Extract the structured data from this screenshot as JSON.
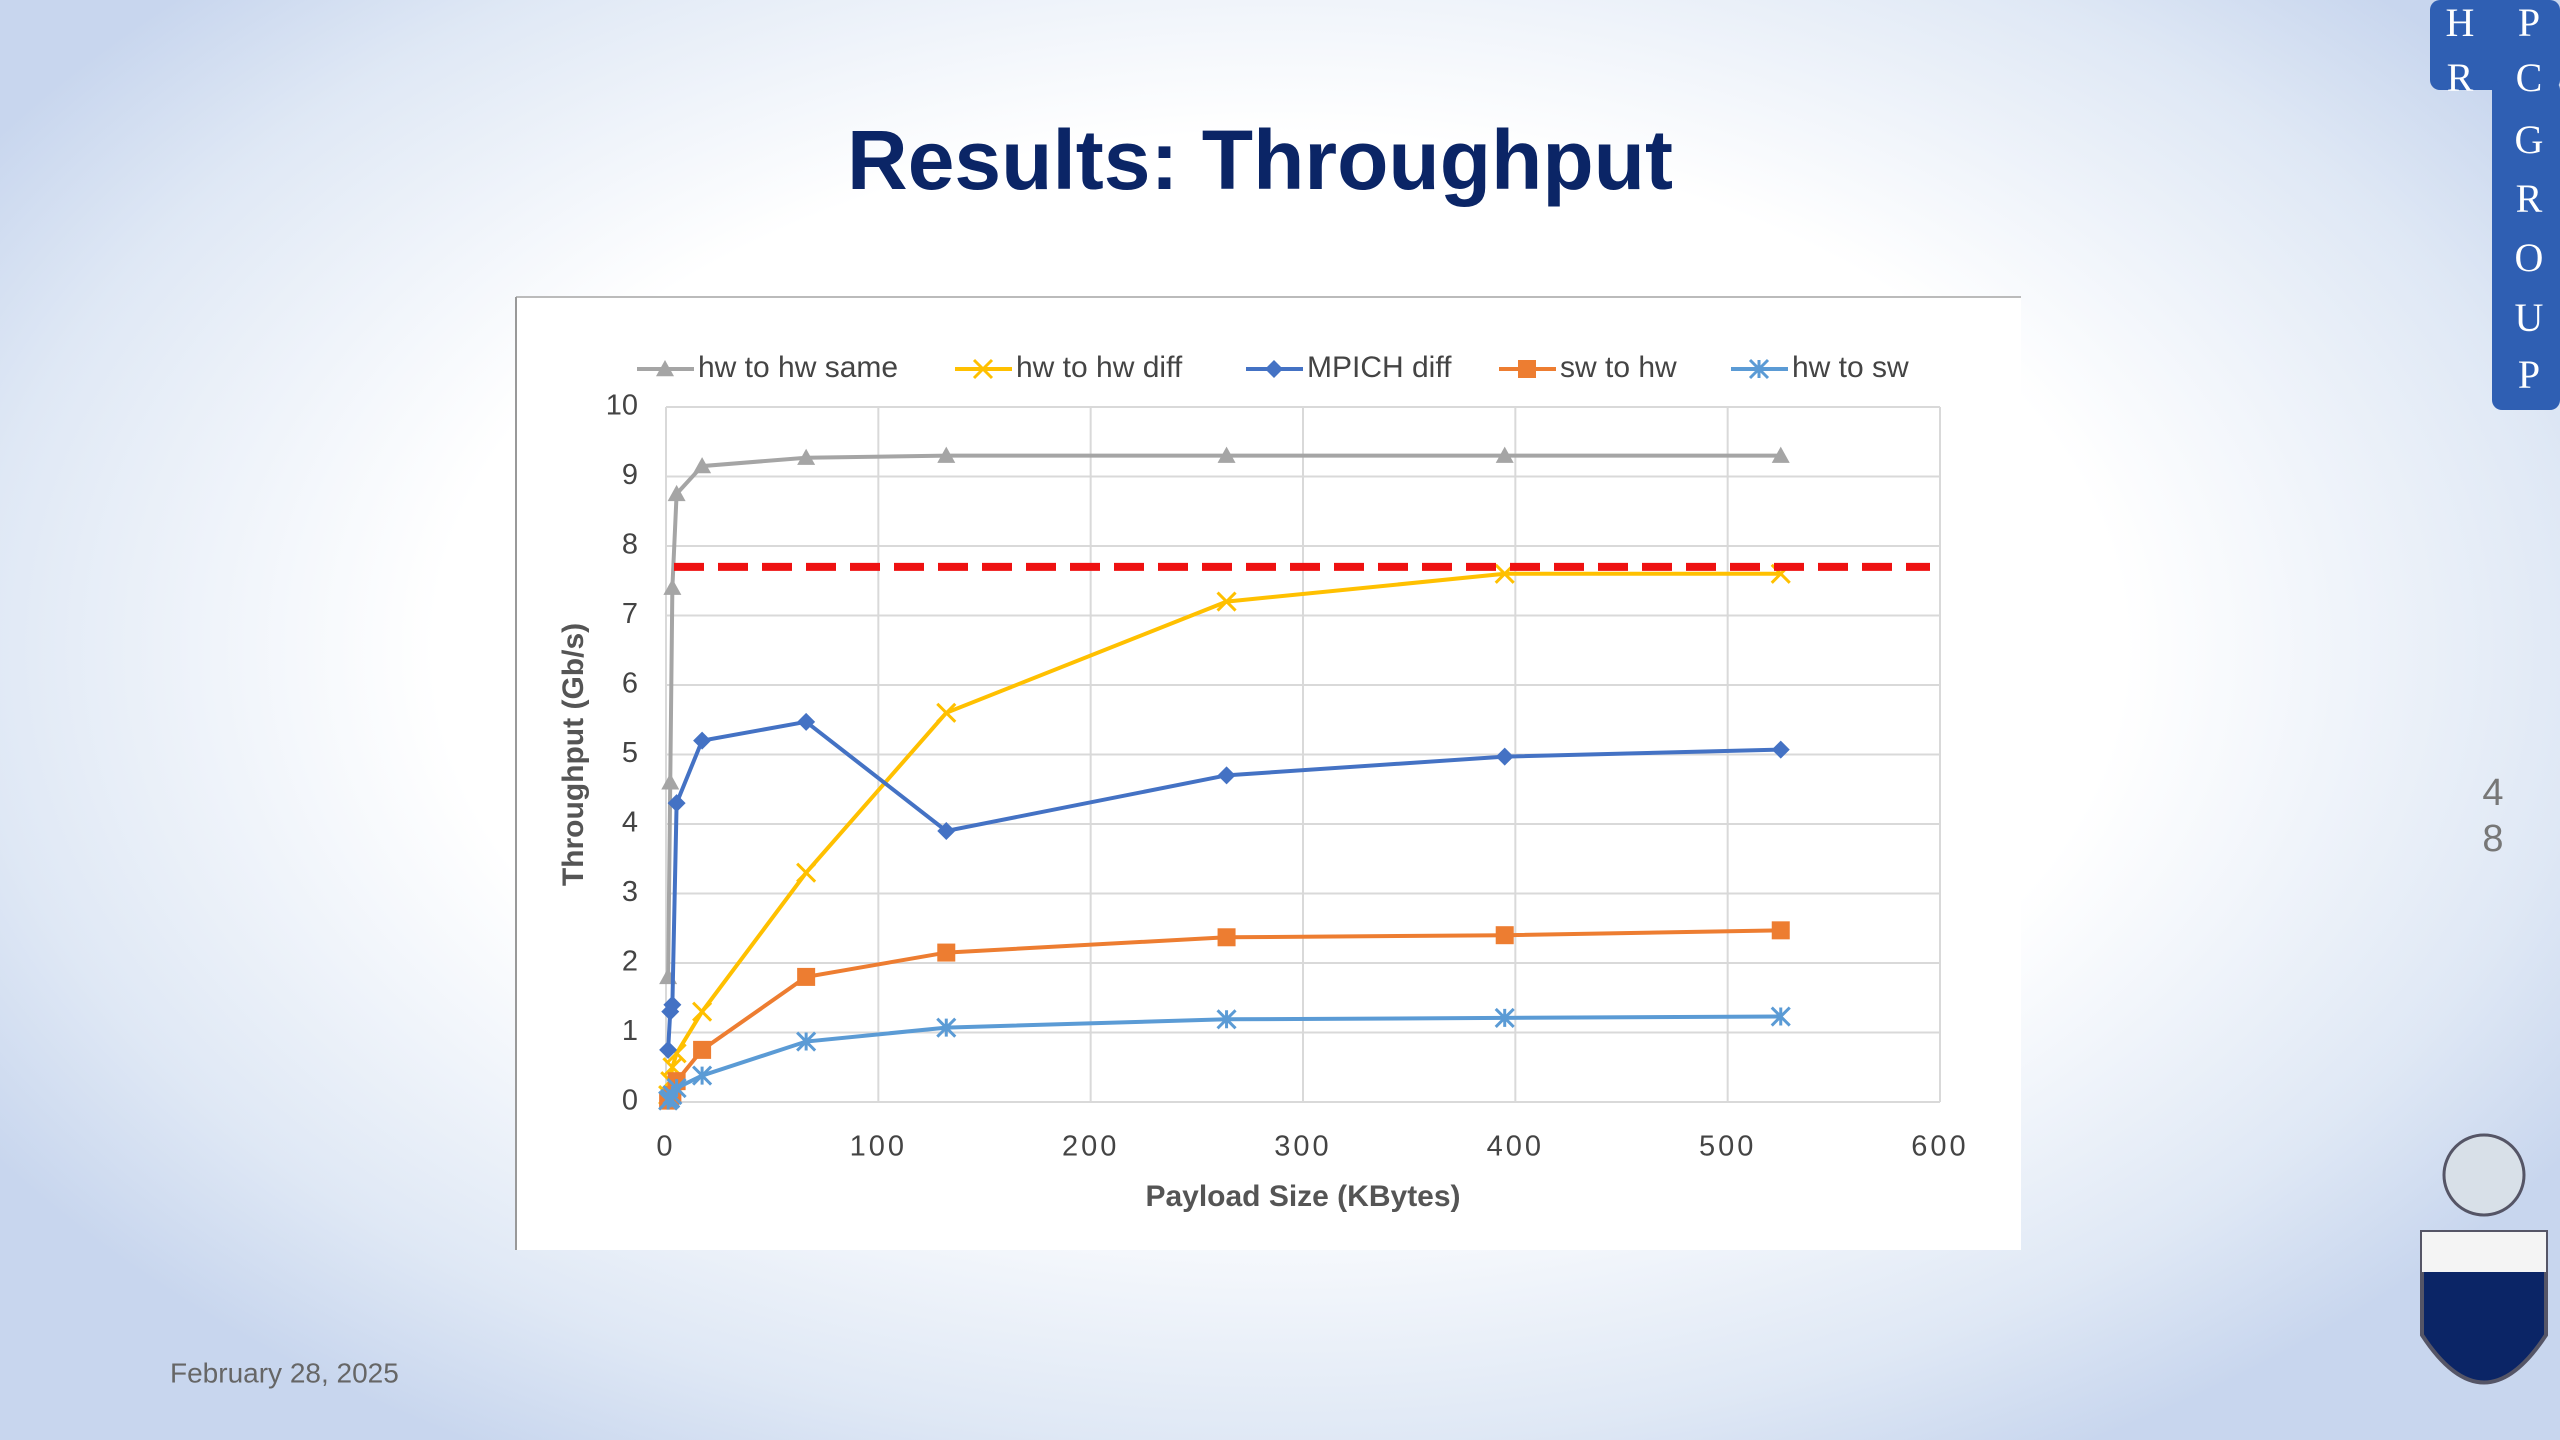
{
  "slide": {
    "title": "Results: Throughput",
    "date": "February 28, 2025",
    "page": "48",
    "logo_letters": [
      "H",
      "P",
      "R",
      "C",
      "G",
      "R",
      "O",
      "U",
      "P"
    ]
  },
  "chart_data": {
    "type": "line",
    "x_label": "Payload Size (KBytes)",
    "y_label": "Throughput (Gb/s)",
    "x": [
      1,
      2,
      3,
      5,
      17,
      66,
      132,
      264,
      395,
      525
    ],
    "series": [
      {
        "name": "hw to hw same",
        "color": "#a5a5a5",
        "marker": "triangle",
        "values": [
          1.8,
          4.6,
          7.4,
          8.75,
          9.15,
          9.27,
          9.3,
          9.3,
          9.3,
          9.3
        ]
      },
      {
        "name": "hw to hw diff",
        "color": "#ffc000",
        "marker": "x",
        "values": [
          0.1,
          0.3,
          0.5,
          0.7,
          1.3,
          3.3,
          5.6,
          7.2,
          7.6,
          7.6
        ]
      },
      {
        "name": "MPICH diff",
        "color": "#4472c4",
        "marker": "diamond",
        "values": [
          0.75,
          1.3,
          1.4,
          4.3,
          5.2,
          5.47,
          3.9,
          4.7,
          4.97,
          5.07
        ]
      },
      {
        "name": "sw to hw",
        "color": "#ed7d31",
        "marker": "square",
        "values": [
          0.02,
          0.05,
          0.1,
          0.3,
          0.75,
          1.8,
          2.15,
          2.37,
          2.4,
          2.47
        ]
      },
      {
        "name": "hw to sw",
        "color": "#5b9bd5",
        "marker": "asterisk",
        "values": [
          0.02,
          0.05,
          0.1,
          0.2,
          0.38,
          0.87,
          1.07,
          1.19,
          1.21,
          1.23
        ]
      }
    ],
    "reference_line": {
      "value": 7.7,
      "color": "#ee1111"
    },
    "xlim": [
      0,
      600
    ],
    "xticks": [
      0,
      100,
      200,
      300,
      400,
      500,
      600
    ],
    "ylim": [
      0,
      10
    ],
    "yticks": [
      0,
      1,
      2,
      3,
      4,
      5,
      6,
      7,
      8,
      9,
      10
    ],
    "grid": true
  }
}
